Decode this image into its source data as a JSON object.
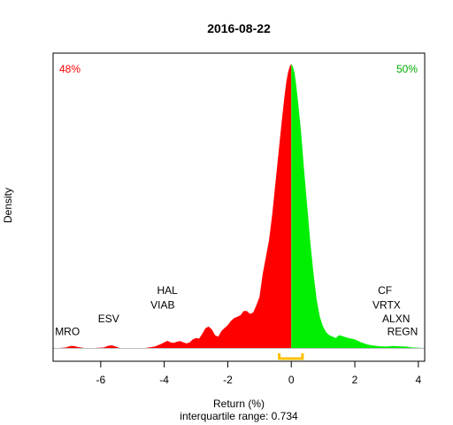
{
  "chart_data": {
    "type": "area",
    "title": "2016-08-22",
    "xlabel": "Return (%)",
    "ylabel": "Density",
    "subtitle": "interquartile range: 0.734",
    "xlim": [
      -7.5,
      4.2
    ],
    "ylim": [
      0,
      1.0
    ],
    "x_ticks": [
      -6,
      -4,
      -2,
      0,
      2,
      4
    ],
    "x_tick_labels": [
      "-6",
      "-4",
      "-2",
      "0",
      "2",
      "4"
    ],
    "grid": false,
    "legend": "none",
    "split_at": 0,
    "negative_share_label": "48%",
    "positive_share_label": "50%",
    "colors": {
      "negative": "#ff0000",
      "positive": "#00ee00",
      "iqr": "#ffc000",
      "baseline": "#bebebe",
      "axis": "#000000"
    },
    "iqr": [
      -0.38,
      0.354
    ],
    "density": {
      "x": [
        -7.5,
        -7.3,
        -7.1,
        -6.95,
        -6.85,
        -6.7,
        -6.5,
        -6.2,
        -5.9,
        -5.75,
        -5.65,
        -5.55,
        -5.4,
        -5.0,
        -4.6,
        -4.3,
        -4.1,
        -4.0,
        -3.9,
        -3.8,
        -3.7,
        -3.6,
        -3.5,
        -3.4,
        -3.3,
        -3.2,
        -3.1,
        -3.0,
        -2.9,
        -2.8,
        -2.7,
        -2.6,
        -2.5,
        -2.4,
        -2.3,
        -2.2,
        -2.1,
        -2.0,
        -1.9,
        -1.8,
        -1.7,
        -1.6,
        -1.5,
        -1.4,
        -1.3,
        -1.2,
        -1.1,
        -1.0,
        -0.9,
        -0.8,
        -0.7,
        -0.6,
        -0.5,
        -0.4,
        -0.3,
        -0.2,
        -0.15,
        -0.1,
        -0.05,
        0.0,
        0.05,
        0.1,
        0.15,
        0.2,
        0.3,
        0.4,
        0.5,
        0.6,
        0.7,
        0.8,
        0.9,
        1.0,
        1.1,
        1.2,
        1.3,
        1.4,
        1.5,
        1.6,
        1.8,
        2.0,
        2.2,
        2.4,
        2.6,
        2.8,
        3.0,
        3.2,
        3.4,
        3.6,
        3.8,
        4.2
      ],
      "y": [
        0.0,
        0.0,
        0.002,
        0.007,
        0.007,
        0.003,
        0.0,
        0.0,
        0.002,
        0.008,
        0.009,
        0.006,
        0.0,
        0.0,
        0.0,
        0.005,
        0.014,
        0.02,
        0.025,
        0.02,
        0.018,
        0.022,
        0.024,
        0.02,
        0.016,
        0.02,
        0.03,
        0.035,
        0.033,
        0.05,
        0.07,
        0.075,
        0.065,
        0.045,
        0.04,
        0.06,
        0.07,
        0.08,
        0.095,
        0.105,
        0.11,
        0.115,
        0.13,
        0.13,
        0.12,
        0.125,
        0.15,
        0.18,
        0.26,
        0.32,
        0.38,
        0.47,
        0.58,
        0.69,
        0.8,
        0.9,
        0.94,
        0.97,
        0.99,
        1.0,
        0.99,
        0.97,
        0.93,
        0.88,
        0.77,
        0.63,
        0.5,
        0.37,
        0.26,
        0.17,
        0.11,
        0.075,
        0.055,
        0.045,
        0.04,
        0.035,
        0.045,
        0.042,
        0.035,
        0.03,
        0.02,
        0.012,
        0.008,
        0.006,
        0.005,
        0.007,
        0.006,
        0.005,
        0.002,
        0.0
      ]
    },
    "annotations": [
      {
        "label": "MRO",
        "x": -7.05,
        "y": 0.045
      },
      {
        "label": "ESV",
        "x": -5.75,
        "y": 0.09
      },
      {
        "label": "HAL",
        "x": -3.9,
        "y": 0.19
      },
      {
        "label": "VIAB",
        "x": -4.05,
        "y": 0.138
      },
      {
        "label": "CF",
        "x": 2.95,
        "y": 0.19
      },
      {
        "label": "VRTX",
        "x": 3.0,
        "y": 0.138
      },
      {
        "label": "ALXN",
        "x": 3.3,
        "y": 0.09
      },
      {
        "label": "REGN",
        "x": 3.5,
        "y": 0.045
      }
    ]
  }
}
